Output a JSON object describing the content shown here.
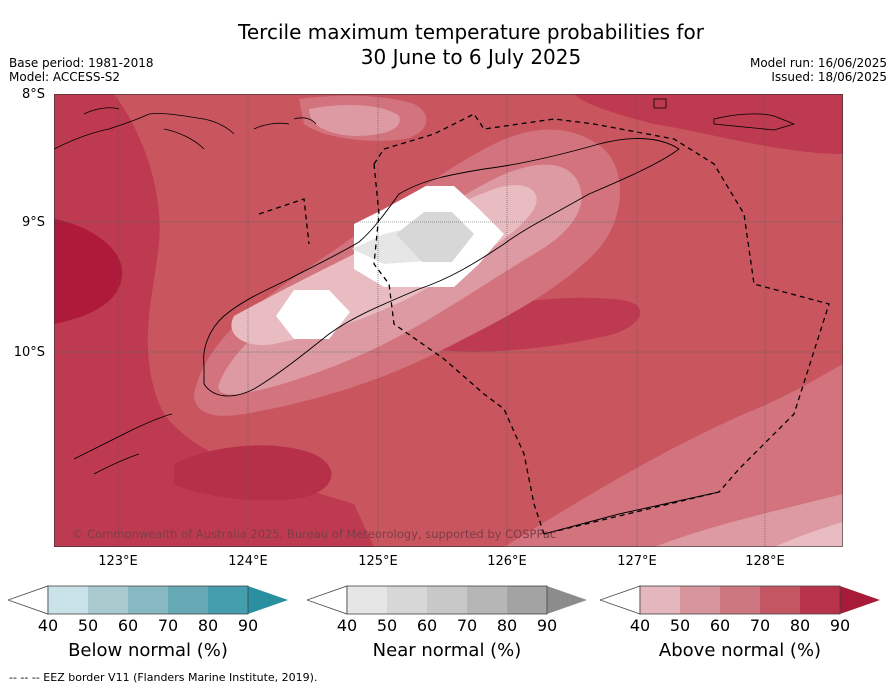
{
  "header": {
    "title_line1": "Tercile maximum temperature probabilities for",
    "title_line2": "30 June to 6 July 2025",
    "base_period": "Base period: 1981-2018",
    "model": "Model: ACCESS-S2",
    "model_run": "Model run: 16/06/2025",
    "issued": "Issued: 18/06/2025"
  },
  "map": {
    "lat_labels": [
      "8°S",
      "9°S",
      "10°S"
    ],
    "lon_labels": [
      "123°E",
      "124°E",
      "125°E",
      "126°E",
      "127°E",
      "128°E"
    ],
    "copyright": "© Commonwealth of Australia 2025, Bureau of Meteorology, supported by COSPPac",
    "colors": {
      "above_90": "#b01a3a",
      "above_80": "#be3a50",
      "above_70": "#c9565f",
      "above_60": "#d2737d",
      "above_50": "#dd9aa3",
      "above_40": "#e8bcc1",
      "near_40": "#e6e6e6",
      "near_50": "#d7d7d7",
      "none": "#ffffff"
    }
  },
  "legends": [
    {
      "title": "Below normal (%)",
      "ticks": [
        "40",
        "50",
        "60",
        "70",
        "80",
        "90"
      ],
      "colors": [
        "#c8e2e8",
        "#a8c9ce",
        "#88b8c1",
        "#66a8b5",
        "#449ead",
        "#2a8fa1"
      ]
    },
    {
      "title": "Near normal (%)",
      "ticks": [
        "40",
        "50",
        "60",
        "70",
        "80",
        "90"
      ],
      "colors": [
        "#e6e6e6",
        "#d7d7d7",
        "#c8c8c8",
        "#b6b6b6",
        "#a3a3a3",
        "#8c8c8c"
      ]
    },
    {
      "title": "Above normal (%)",
      "ticks": [
        "40",
        "50",
        "60",
        "70",
        "80",
        "90"
      ],
      "colors": [
        "#e3b7bd",
        "#d9959e",
        "#cd7880",
        "#c45562",
        "#b8334a",
        "#a71a38"
      ]
    }
  ],
  "footer": {
    "eez_note": "-- -- -- EEZ border V11 (Flanders Marine Institute, 2019)."
  }
}
